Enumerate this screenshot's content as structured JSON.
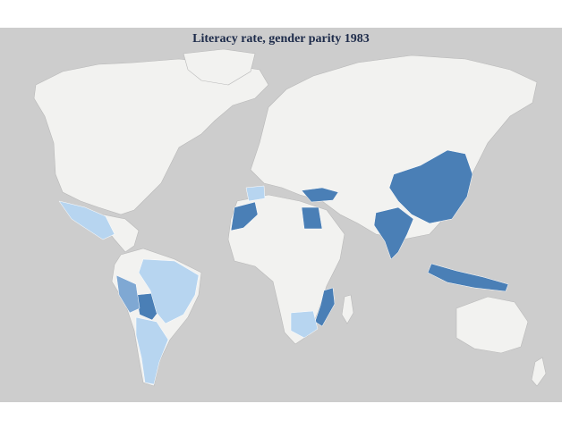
{
  "title": "Literacy rate, gender parity 1983",
  "colors": {
    "background": "#cdcdcd",
    "no_data_land": "#f2f2f0",
    "high": "#4a7fb6",
    "medium": "#7fa8d3",
    "low": "#b7d5f0"
  },
  "regions": [
    {
      "name": "China",
      "category": "high"
    },
    {
      "name": "India",
      "category": "high"
    },
    {
      "name": "Turkey",
      "category": "high"
    },
    {
      "name": "Egypt",
      "category": "high"
    },
    {
      "name": "Morocco",
      "category": "high"
    },
    {
      "name": "Mozambique",
      "category": "high"
    },
    {
      "name": "Indonesia",
      "category": "high"
    },
    {
      "name": "Bolivia",
      "category": "high"
    },
    {
      "name": "Mexico",
      "category": "light"
    },
    {
      "name": "Brazil",
      "category": "light"
    },
    {
      "name": "South Africa",
      "category": "light"
    },
    {
      "name": "Spain",
      "category": "light"
    },
    {
      "name": "Peru",
      "category": "medium"
    },
    {
      "name": "Chile",
      "category": "light"
    },
    {
      "name": "Argentina",
      "category": "light"
    }
  ]
}
